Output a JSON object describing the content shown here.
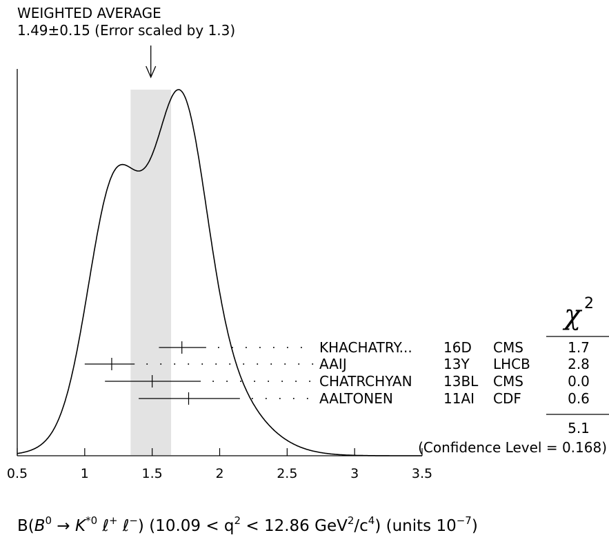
{
  "chart_data": {
    "type": "ideogram",
    "title_line1": "WEIGHTED AVERAGE",
    "title_line2": "1.49±0.15 (Error scaled by 1.3)",
    "weighted_average": {
      "value": 1.49,
      "error": 0.15,
      "scale_factor": 1.3
    },
    "band": [
      1.34,
      1.64
    ],
    "xlim": [
      0.5,
      3.5
    ],
    "x_ticks": [
      "0.5",
      "1",
      "1.5",
      "2",
      "2.5",
      "3",
      "3.5"
    ],
    "x_tick_values": [
      0.5,
      1.0,
      1.5,
      2.0,
      2.5,
      3.0,
      3.5
    ],
    "xlabel": {
      "p1": "B(",
      "b": "B",
      "b_sup": "0",
      "arrow": " → ",
      "k": "K",
      "k_sup": "*0",
      "l1": " ℓ",
      "l1_sup": "+",
      "l2": " ℓ",
      "l2_sup": "−",
      "p2": ") (10.09 < q",
      "q_sup": "2",
      "p3": " < 12.86 GeV",
      "gev_sup": "2",
      "p4": "/c",
      "c_sup": "4",
      "p5": ") (units 10",
      "units_sup": "−7",
      "p6": ")"
    },
    "chi2_header": "χ",
    "chi2_header_sup": "2",
    "measurements": [
      {
        "author": "KHACHATRY...",
        "year": "16D",
        "experiment": "CMS",
        "value": 1.72,
        "lo": 1.55,
        "hi": 1.9,
        "chi2": "1.7"
      },
      {
        "author": "AAIJ",
        "year": "13Y",
        "experiment": "LHCB",
        "value": 1.2,
        "lo": 1.0,
        "hi": 1.37,
        "chi2": "2.8"
      },
      {
        "author": "CHATRCHYAN",
        "year": "13BL",
        "experiment": "CMS",
        "value": 1.5,
        "lo": 1.15,
        "hi": 1.86,
        "chi2": "0.0"
      },
      {
        "author": "AALTONEN",
        "year": "11AI",
        "experiment": "CDF",
        "value": 1.77,
        "lo": 1.4,
        "hi": 2.15,
        "chi2": "0.6"
      }
    ],
    "chi2_total": "5.1",
    "confidence_level": "(Confidence Level = 0.168)"
  }
}
